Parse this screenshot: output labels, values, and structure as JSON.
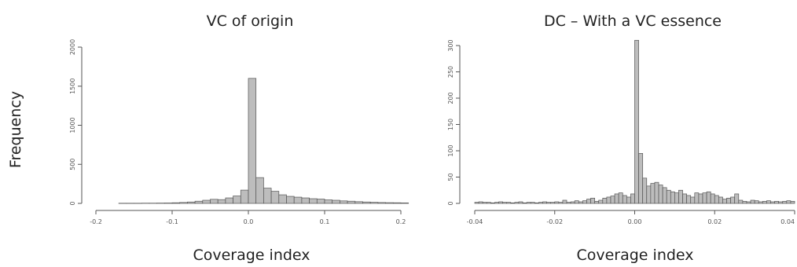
{
  "figure": {
    "ylabel": "Frequency"
  },
  "chart_data": [
    {
      "type": "bar",
      "title": "VC of origin",
      "xlabel": "Coverage index",
      "ylabel": "Frequency",
      "xlim": [
        -0.2,
        0.2
      ],
      "ylim": [
        0,
        2000
      ],
      "xticks": [
        -0.2,
        -0.1,
        0.0,
        0.1,
        0.2
      ],
      "xtick_labels": [
        "-0.2",
        "-0.1",
        "0.0",
        "0.1",
        "0.2"
      ],
      "yticks": [
        0,
        500,
        1000,
        1500,
        2000
      ],
      "ytick_labels": [
        "0",
        "500",
        "1000",
        "1500",
        "2000"
      ],
      "bin_width": 0.01,
      "bins_start": [
        -0.17,
        -0.16,
        -0.15,
        -0.14,
        -0.13,
        -0.12,
        -0.11,
        -0.1,
        -0.09,
        -0.08,
        -0.07,
        -0.06,
        -0.05,
        -0.04,
        -0.03,
        -0.02,
        -0.01,
        0.0,
        0.01,
        0.02,
        0.03,
        0.04,
        0.05,
        0.06,
        0.07,
        0.08,
        0.09,
        0.1,
        0.11,
        0.12,
        0.13,
        0.14,
        0.15,
        0.16,
        0.17,
        0.18,
        0.19,
        0.2
      ],
      "values": [
        2,
        2,
        2,
        3,
        3,
        4,
        5,
        8,
        12,
        18,
        28,
        40,
        52,
        48,
        70,
        95,
        170,
        1600,
        330,
        195,
        155,
        110,
        90,
        80,
        70,
        60,
        55,
        45,
        40,
        32,
        28,
        22,
        18,
        14,
        11,
        9,
        8,
        6
      ]
    },
    {
      "type": "bar",
      "title": "DC – With a VC essence",
      "xlabel": "Coverage index",
      "ylabel": "Frequency",
      "xlim": [
        -0.04,
        0.04
      ],
      "ylim": [
        0,
        300
      ],
      "xticks": [
        -0.04,
        -0.02,
        0.0,
        0.02,
        0.04
      ],
      "xtick_labels": [
        "-0.04",
        "-0.02",
        "0.00",
        "0.02",
        "0.04"
      ],
      "yticks": [
        0,
        50,
        100,
        150,
        200,
        250,
        300
      ],
      "ytick_labels": [
        "0",
        "50",
        "100",
        "150",
        "200",
        "250",
        "300"
      ],
      "bin_width": 0.001,
      "bins_start": [
        -0.04,
        -0.039,
        -0.038,
        -0.037,
        -0.036,
        -0.035,
        -0.034,
        -0.033,
        -0.032,
        -0.031,
        -0.03,
        -0.029,
        -0.028,
        -0.027,
        -0.026,
        -0.025,
        -0.024,
        -0.023,
        -0.022,
        -0.021,
        -0.02,
        -0.019,
        -0.018,
        -0.017,
        -0.016,
        -0.015,
        -0.014,
        -0.013,
        -0.012,
        -0.011,
        -0.01,
        -0.009,
        -0.008,
        -0.007,
        -0.006,
        -0.005,
        -0.004,
        -0.003,
        -0.002,
        -0.001,
        0.0,
        0.001,
        0.002,
        0.003,
        0.004,
        0.005,
        0.006,
        0.007,
        0.008,
        0.009,
        0.01,
        0.011,
        0.012,
        0.013,
        0.014,
        0.015,
        0.016,
        0.017,
        0.018,
        0.019,
        0.02,
        0.021,
        0.022,
        0.023,
        0.024,
        0.025,
        0.026,
        0.027,
        0.028,
        0.029,
        0.03,
        0.031,
        0.032,
        0.033,
        0.034,
        0.035,
        0.036,
        0.037,
        0.038,
        0.039
      ],
      "values": [
        2,
        3,
        2,
        2,
        1,
        2,
        3,
        2,
        2,
        1,
        2,
        3,
        1,
        2,
        2,
        1,
        2,
        3,
        2,
        2,
        3,
        2,
        6,
        2,
        3,
        5,
        3,
        5,
        8,
        10,
        4,
        6,
        10,
        12,
        14,
        18,
        20,
        15,
        12,
        18,
        310,
        95,
        48,
        33,
        38,
        40,
        35,
        30,
        25,
        22,
        20,
        25,
        18,
        15,
        12,
        20,
        18,
        20,
        22,
        18,
        15,
        12,
        8,
        10,
        12,
        18,
        6,
        4,
        3,
        6,
        5,
        3,
        4,
        5,
        3,
        4,
        3,
        4,
        5,
        4
      ]
    }
  ]
}
